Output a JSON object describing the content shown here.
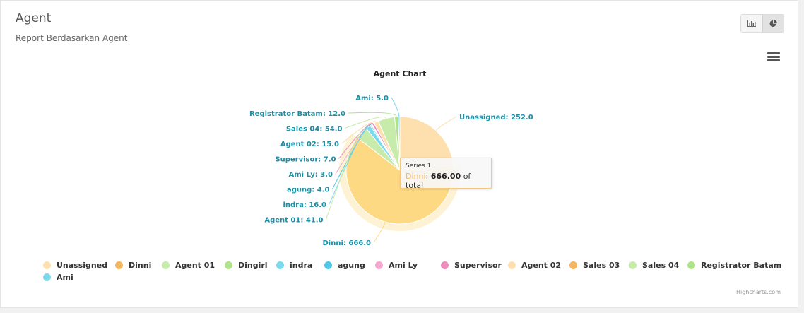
{
  "header": {
    "title": "Agent",
    "subtitle": "Report Berdasarkan Agent"
  },
  "toolbar": {
    "bar_view_icon": "bar-chart-icon",
    "pie_view_icon": "pie-chart-icon",
    "active_view": "pie"
  },
  "chart_data": {
    "type": "pie",
    "title": "Agent Chart",
    "series_name": "Series 1",
    "slices": [
      {
        "name": "Unassigned",
        "value": 252.0,
        "label": "Unassigned: 252.0",
        "color": "#fde0ad"
      },
      {
        "name": "Dinni",
        "value": 666.0,
        "label": "Dinni: 666.0",
        "color": "#fdd984"
      },
      {
        "name": "Agent 01",
        "value": 41.0,
        "label": "Agent 01: 41.0",
        "color": "#c7ebaa"
      },
      {
        "name": "Dingirl",
        "value": 0,
        "label": "",
        "color": "#aee38a"
      },
      {
        "name": "indra",
        "value": 16.0,
        "label": "indra: 16.0",
        "color": "#7bd9ec"
      },
      {
        "name": "agung",
        "value": 4.0,
        "label": "agung: 4.0",
        "color": "#4ec8e6"
      },
      {
        "name": "Ami Ly",
        "value": 3.0,
        "label": "Ami Ly: 3.0",
        "color": "#f6a7cd"
      },
      {
        "name": "Supervisor",
        "value": 7.0,
        "label": "Supervisor: 7.0",
        "color": "#ec8fbd"
      },
      {
        "name": "Agent 02",
        "value": 15.0,
        "label": "Agent 02: 15.0",
        "color": "#fde0ad"
      },
      {
        "name": "Sales 03",
        "value": 0,
        "label": "",
        "color": "#fdd984"
      },
      {
        "name": "Sales 04",
        "value": 54.0,
        "label": "Sales 04: 54.0",
        "color": "#c7ebaa"
      },
      {
        "name": "Registrator Batam",
        "value": 12.0,
        "label": "Registrator Batam: 12.0",
        "color": "#aee38a"
      },
      {
        "name": "Ami",
        "value": 5.0,
        "label": "Ami: 5.0",
        "color": "#7bd9ec"
      }
    ],
    "legend_colors": [
      "#fde0ad",
      "#f4b65e",
      "#c7ebaa",
      "#aee38a",
      "#7bd9ec",
      "#4ec8e6",
      "#f6a7cd",
      "#ec8fbd",
      "#fde0ad",
      "#f4b65e",
      "#c7ebaa",
      "#aee38a",
      "#7bd9ec"
    ],
    "label_color": "#1b8fa6",
    "tooltip": {
      "series": "Series 1",
      "point": "Dinni",
      "value": "666.00",
      "suffix": "of total"
    },
    "legend_placement": "bottom",
    "credits": "Highcharts.com"
  }
}
